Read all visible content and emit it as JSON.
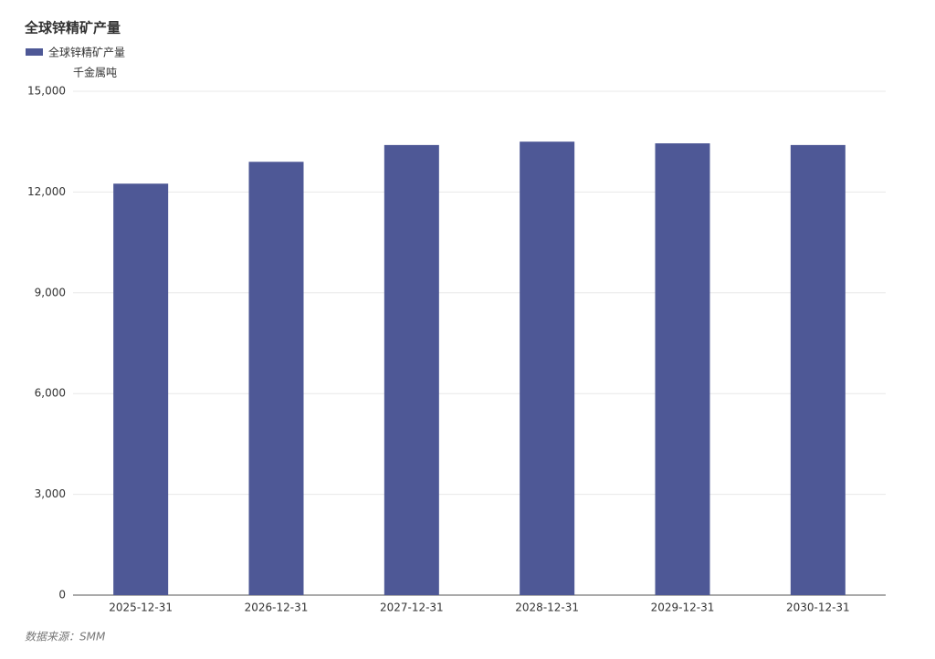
{
  "chart_data": {
    "type": "bar",
    "title": "全球锌精矿产量",
    "y_label": "千金属吨",
    "source": "数据来源：SMM",
    "categories": [
      "2025-12-31",
      "2026-12-31",
      "2027-12-31",
      "2028-12-31",
      "2029-12-31",
      "2030-12-31"
    ],
    "series": [
      {
        "name": "全球锌精矿产量",
        "color": "#4e5896",
        "values": [
          12250,
          12900,
          13400,
          13500,
          13450,
          13400
        ]
      }
    ],
    "ylim": [
      0,
      15000
    ],
    "yticks": [
      0,
      {
        "value": 3000,
        "label": "3,000"
      },
      {
        "value": 6000,
        "label": "6,000"
      },
      {
        "value": 9000,
        "label": "9,000"
      },
      {
        "value": 12000,
        "label": "12,000"
      },
      {
        "value": 15000,
        "label": "15,000"
      }
    ],
    "grid": true
  }
}
